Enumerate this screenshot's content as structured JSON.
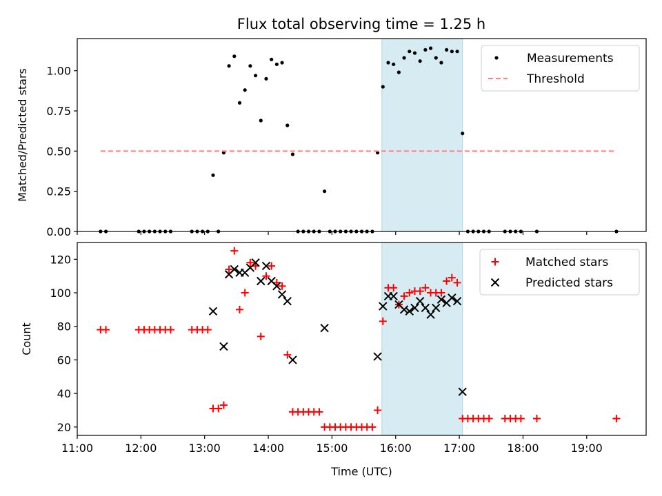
{
  "chart_data": [
    {
      "type": "scatter",
      "title": "Flux total observing time = 1.25 h",
      "xlabel": "",
      "ylabel": "Matched/Predicted stars",
      "xlim": [
        "11:00",
        "19:56"
      ],
      "ylim": [
        0,
        1.2
      ],
      "yticks": [
        "0.00",
        "0.25",
        "0.50",
        "0.75",
        "1.00"
      ],
      "grid": false,
      "legend_position": "top-right",
      "highlight_span": {
        "start": "15:47",
        "end": "17:03",
        "color": "#add8e6"
      },
      "series": [
        {
          "name": "Measurements",
          "marker": "dot",
          "color": "#000000",
          "points": [
            [
              "11:22",
              0
            ],
            [
              "11:27",
              0
            ],
            [
              "11:58",
              0
            ],
            [
              "12:03",
              0
            ],
            [
              "12:08",
              0
            ],
            [
              "12:13",
              0
            ],
            [
              "12:18",
              0
            ],
            [
              "12:23",
              0
            ],
            [
              "12:28",
              0
            ],
            [
              "12:48",
              0
            ],
            [
              "12:53",
              0
            ],
            [
              "12:58",
              0
            ],
            [
              "13:03",
              0
            ],
            [
              "13:08",
              0.35
            ],
            [
              "13:13",
              0
            ],
            [
              "13:18",
              0.49
            ],
            [
              "13:23",
              1.03
            ],
            [
              "13:28",
              1.09
            ],
            [
              "13:33",
              0.8
            ],
            [
              "13:38",
              0.88
            ],
            [
              "13:43",
              1.03
            ],
            [
              "13:48",
              0.97
            ],
            [
              "13:53",
              0.69
            ],
            [
              "13:58",
              0.95
            ],
            [
              "14:03",
              1.07
            ],
            [
              "14:08",
              1.04
            ],
            [
              "14:13",
              1.05
            ],
            [
              "14:18",
              0.66
            ],
            [
              "14:23",
              0.48
            ],
            [
              "14:28",
              0
            ],
            [
              "14:33",
              0
            ],
            [
              "14:38",
              0
            ],
            [
              "14:43",
              0
            ],
            [
              "14:48",
              0
            ],
            [
              "14:53",
              0.25
            ],
            [
              "14:58",
              0
            ],
            [
              "15:03",
              0
            ],
            [
              "15:08",
              0
            ],
            [
              "15:13",
              0
            ],
            [
              "15:18",
              0
            ],
            [
              "15:23",
              0
            ],
            [
              "15:28",
              0
            ],
            [
              "15:33",
              0
            ],
            [
              "15:38",
              0
            ],
            [
              "15:43",
              0.49
            ],
            [
              "15:48",
              0.9
            ],
            [
              "15:53",
              1.05
            ],
            [
              "15:58",
              1.04
            ],
            [
              "16:03",
              0.99
            ],
            [
              "16:08",
              1.08
            ],
            [
              "16:13",
              1.12
            ],
            [
              "16:18",
              1.11
            ],
            [
              "16:23",
              1.06
            ],
            [
              "16:28",
              1.13
            ],
            [
              "16:33",
              1.14
            ],
            [
              "16:38",
              1.08
            ],
            [
              "16:43",
              1.05
            ],
            [
              "16:48",
              1.13
            ],
            [
              "16:53",
              1.12
            ],
            [
              "16:58",
              1.12
            ],
            [
              "17:03",
              0.61
            ],
            [
              "17:08",
              0
            ],
            [
              "17:13",
              0
            ],
            [
              "17:18",
              0
            ],
            [
              "17:23",
              0
            ],
            [
              "17:28",
              0
            ],
            [
              "17:43",
              0
            ],
            [
              "17:48",
              0
            ],
            [
              "17:53",
              0
            ],
            [
              "17:58",
              0
            ],
            [
              "18:13",
              0
            ],
            [
              "19:28",
              0
            ]
          ]
        },
        {
          "name": "Threshold",
          "marker": "dashed-line",
          "color": "#ff7f7f",
          "points": [
            [
              "11:22",
              0.5
            ],
            [
              "19:28",
              0.5
            ]
          ]
        }
      ]
    },
    {
      "type": "scatter",
      "title": "",
      "xlabel": "Time (UTC)",
      "ylabel": "Count",
      "xlim": [
        "11:00",
        "19:56"
      ],
      "ylim": [
        15,
        130
      ],
      "yticks": [
        "20",
        "40",
        "60",
        "80",
        "100",
        "120"
      ],
      "xticks": [
        "11:00",
        "12:00",
        "13:00",
        "14:00",
        "15:00",
        "16:00",
        "17:00",
        "18:00",
        "19:00"
      ],
      "grid": false,
      "legend_position": "top-right",
      "highlight_span": {
        "start": "15:47",
        "end": "17:03",
        "color": "#add8e6"
      },
      "series": [
        {
          "name": "Matched stars",
          "marker": "plus",
          "color": "#ff0000",
          "points": [
            [
              "11:22",
              78
            ],
            [
              "11:27",
              78
            ],
            [
              "11:58",
              78
            ],
            [
              "12:03",
              78
            ],
            [
              "12:08",
              78
            ],
            [
              "12:13",
              78
            ],
            [
              "12:18",
              78
            ],
            [
              "12:23",
              78
            ],
            [
              "12:28",
              78
            ],
            [
              "12:48",
              78
            ],
            [
              "12:53",
              78
            ],
            [
              "12:58",
              78
            ],
            [
              "13:03",
              78
            ],
            [
              "13:08",
              31
            ],
            [
              "13:13",
              31
            ],
            [
              "13:18",
              33
            ],
            [
              "13:23",
              114
            ],
            [
              "13:28",
              125
            ],
            [
              "13:33",
              90
            ],
            [
              "13:38",
              100
            ],
            [
              "13:43",
              118
            ],
            [
              "13:48",
              116
            ],
            [
              "13:53",
              74
            ],
            [
              "13:58",
              110
            ],
            [
              "14:03",
              116
            ],
            [
              "14:08",
              106
            ],
            [
              "14:13",
              104
            ],
            [
              "14:18",
              63
            ],
            [
              "14:23",
              29
            ],
            [
              "14:28",
              29
            ],
            [
              "14:33",
              29
            ],
            [
              "14:38",
              29
            ],
            [
              "14:43",
              29
            ],
            [
              "14:48",
              29
            ],
            [
              "14:53",
              20
            ],
            [
              "14:58",
              20
            ],
            [
              "15:03",
              20
            ],
            [
              "15:08",
              20
            ],
            [
              "15:13",
              20
            ],
            [
              "15:18",
              20
            ],
            [
              "15:23",
              20
            ],
            [
              "15:28",
              20
            ],
            [
              "15:33",
              20
            ],
            [
              "15:38",
              20
            ],
            [
              "15:43",
              30
            ],
            [
              "15:48",
              83
            ],
            [
              "15:53",
              103
            ],
            [
              "15:58",
              103
            ],
            [
              "16:03",
              93
            ],
            [
              "16:08",
              98
            ],
            [
              "16:13",
              100
            ],
            [
              "16:18",
              101
            ],
            [
              "16:23",
              101
            ],
            [
              "16:28",
              103
            ],
            [
              "16:33",
              100
            ],
            [
              "16:38",
              100
            ],
            [
              "16:43",
              100
            ],
            [
              "16:48",
              107
            ],
            [
              "16:53",
              109
            ],
            [
              "16:58",
              106
            ],
            [
              "17:03",
              25
            ],
            [
              "17:08",
              25
            ],
            [
              "17:13",
              25
            ],
            [
              "17:18",
              25
            ],
            [
              "17:23",
              25
            ],
            [
              "17:28",
              25
            ],
            [
              "17:43",
              25
            ],
            [
              "17:48",
              25
            ],
            [
              "17:53",
              25
            ],
            [
              "17:58",
              25
            ],
            [
              "18:13",
              25
            ],
            [
              "19:28",
              25
            ]
          ]
        },
        {
          "name": "Predicted stars",
          "marker": "x",
          "color": "#000000",
          "points": [
            [
              "13:08",
              89
            ],
            [
              "13:18",
              68
            ],
            [
              "13:23",
              111
            ],
            [
              "13:28",
              114
            ],
            [
              "13:33",
              112
            ],
            [
              "13:38",
              112
            ],
            [
              "13:43",
              115
            ],
            [
              "13:48",
              118
            ],
            [
              "13:53",
              107
            ],
            [
              "13:58",
              116
            ],
            [
              "14:03",
              107
            ],
            [
              "14:08",
              104
            ],
            [
              "14:13",
              99
            ],
            [
              "14:18",
              95
            ],
            [
              "14:23",
              60
            ],
            [
              "14:53",
              79
            ],
            [
              "15:43",
              62
            ],
            [
              "15:48",
              92
            ],
            [
              "15:53",
              98
            ],
            [
              "15:58",
              98
            ],
            [
              "16:03",
              93
            ],
            [
              "16:08",
              90
            ],
            [
              "16:13",
              89
            ],
            [
              "16:18",
              91
            ],
            [
              "16:23",
              95
            ],
            [
              "16:28",
              91
            ],
            [
              "16:33",
              87
            ],
            [
              "16:38",
              91
            ],
            [
              "16:43",
              96
            ],
            [
              "16:48",
              94
            ],
            [
              "16:53",
              97
            ],
            [
              "16:58",
              95
            ],
            [
              "17:03",
              41
            ]
          ]
        }
      ]
    }
  ]
}
